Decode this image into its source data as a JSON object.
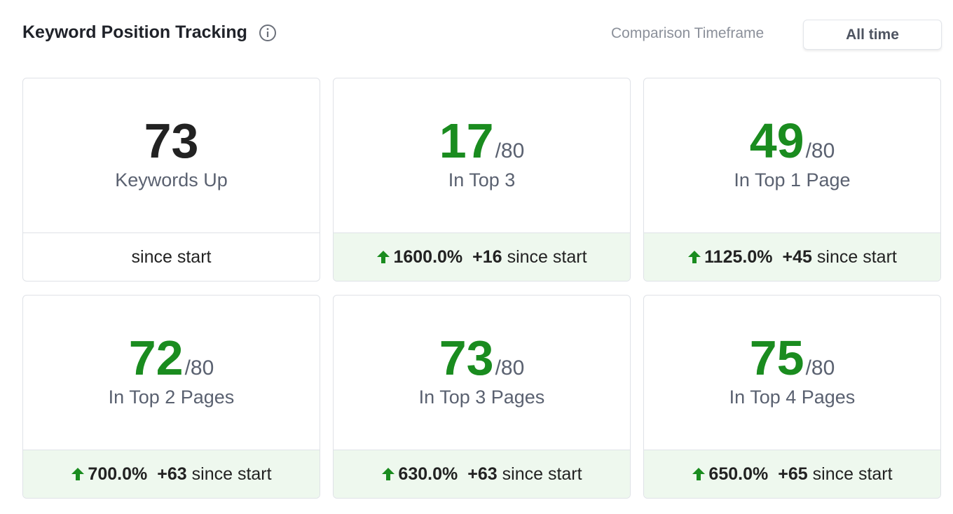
{
  "header": {
    "title": "Keyword Position Tracking",
    "timeframe_label": "Comparison Timeframe",
    "timeframe_button": "All time"
  },
  "cards": [
    {
      "value": "73",
      "label": "Keywords Up",
      "footer": "since start"
    },
    {
      "value": "17",
      "total": "/80",
      "label": "In Top 3",
      "change": "1600.0%",
      "delta": "+16",
      "footer": "since start"
    },
    {
      "value": "49",
      "total": "/80",
      "label": "In Top 1 Page",
      "change": "1125.0%",
      "delta": "+45",
      "footer": "since start"
    },
    {
      "value": "72",
      "total": "/80",
      "label": "In Top 2 Pages",
      "change": "700.0%",
      "delta": "+63",
      "footer": "since start"
    },
    {
      "value": "73",
      "total": "/80",
      "label": "In Top 3 Pages",
      "change": "630.0%",
      "delta": "+63",
      "footer": "since start"
    },
    {
      "value": "75",
      "total": "/80",
      "label": "In Top 4 Pages",
      "change": "650.0%",
      "delta": "+65",
      "footer": "since start"
    }
  ]
}
